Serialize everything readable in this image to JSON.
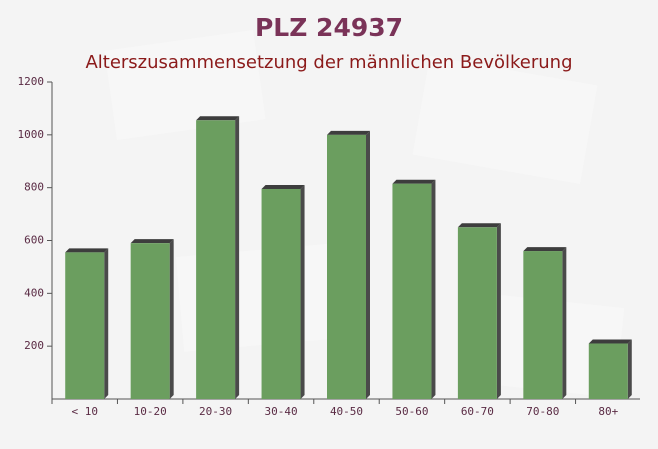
{
  "chart_data": {
    "type": "bar",
    "title": "PLZ 24937",
    "subtitle": "Alterszusammensetzung der männlichen Bevölkerung",
    "categories": [
      "< 10",
      "10-20",
      "20-30",
      "30-40",
      "40-50",
      "50-60",
      "60-70",
      "70-80",
      "80+"
    ],
    "values": [
      555,
      590,
      1055,
      795,
      1000,
      815,
      650,
      560,
      210
    ],
    "color": "#6b9e5f",
    "ylim": [
      0,
      1200
    ],
    "yticks": [
      200,
      400,
      600,
      800,
      1000,
      1200
    ]
  }
}
